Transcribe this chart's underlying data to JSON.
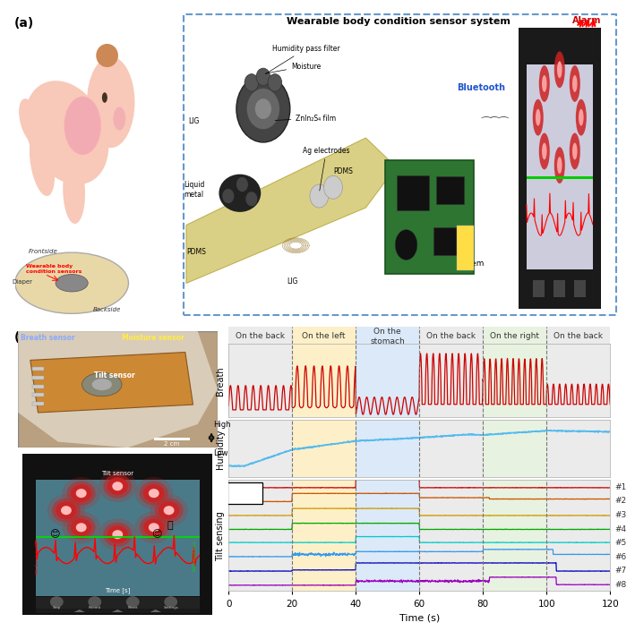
{
  "title": "Wearable body condition sensor system",
  "position_labels": [
    "On the back",
    "On the left",
    "On the\nstomach",
    "On the back",
    "On the right",
    "On the back"
  ],
  "position_times": [
    0,
    20,
    40,
    60,
    80,
    100,
    120
  ],
  "bg_colors": [
    "#ebebeb",
    "#fdf0c8",
    "#dce9f8",
    "#ebebeb",
    "#e8f2e0",
    "#ebebeb"
  ],
  "breath_color": "#cc0000",
  "humidity_color": "#55bbee",
  "tilt_colors": [
    "#cc0000",
    "#cc5500",
    "#cc9900",
    "#00aa00",
    "#00cccc",
    "#3399ee",
    "#0000bb",
    "#9900bb"
  ],
  "tilt_labels": [
    "#1",
    "#2",
    "#3",
    "#4",
    "#5",
    "#6",
    "#7",
    "#8"
  ],
  "xlabel": "Time (s)",
  "xticks": [
    0,
    20,
    40,
    60,
    80,
    100,
    120
  ],
  "sensor_labels": [
    "Breath",
    "Humidity",
    "Tilt sensing"
  ],
  "panel_a_label_color": "#333333",
  "panel_b_label_color": "#333333",
  "box_edge_color": "#6699cc",
  "alarm_color": "#cc0000",
  "bluetooth_color": "#2255cc"
}
